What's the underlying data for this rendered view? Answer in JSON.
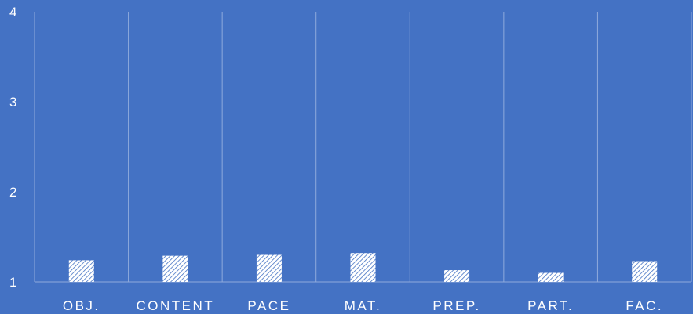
{
  "chart_data": {
    "type": "bar",
    "title": "",
    "xlabel": "",
    "ylabel": "",
    "categories": [
      "OBJ.",
      "CONTENT",
      "PACE",
      "MAT.",
      "PREP.",
      "PART.",
      "FAC."
    ],
    "values": [
      1.24,
      1.29,
      1.3,
      1.32,
      1.13,
      1.1,
      1.23
    ],
    "ylim": [
      1,
      4
    ],
    "yticks": [
      "1",
      "2",
      "3",
      "4"
    ],
    "grid": "vertical category separators",
    "legend": "none",
    "colors": {
      "background": "#4472C4",
      "bar_fill": "#FFFFFF",
      "bar_hatch": "#4472C4",
      "grid": "#8FAADC",
      "text": "#FFFFFF"
    }
  }
}
